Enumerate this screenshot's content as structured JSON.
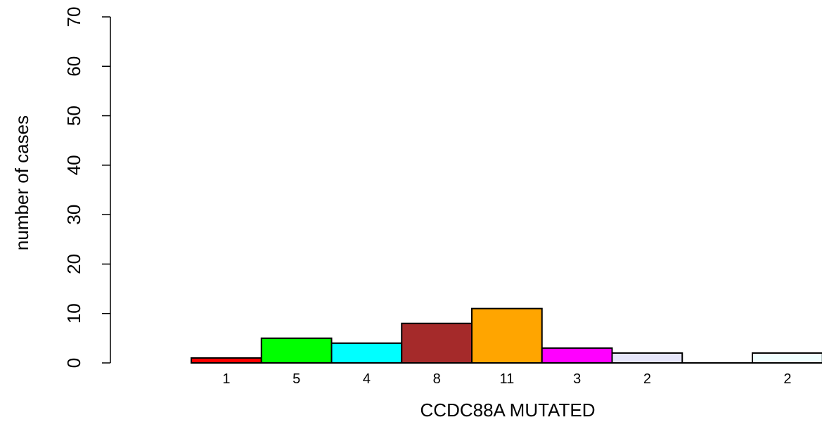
{
  "chart_data": {
    "type": "bar",
    "xlabel": "CCDC88A MUTATED",
    "ylabel": "number of cases",
    "ylim": [
      0,
      70
    ],
    "yticks": [
      0,
      10,
      20,
      30,
      40,
      50,
      60,
      70
    ],
    "grid": false,
    "categories": [
      "1",
      "5",
      "4",
      "8",
      "11",
      "3",
      "2",
      "",
      "2"
    ],
    "values": [
      1,
      5,
      4,
      8,
      11,
      3,
      2,
      0,
      2
    ],
    "colors": [
      "#ff0000",
      "#00ff00",
      "#00ffff",
      "#a52a2a",
      "#ffa500",
      "#ff00ff",
      "#e6e6fa",
      "#ffffff",
      "#f0ffff"
    ]
  }
}
